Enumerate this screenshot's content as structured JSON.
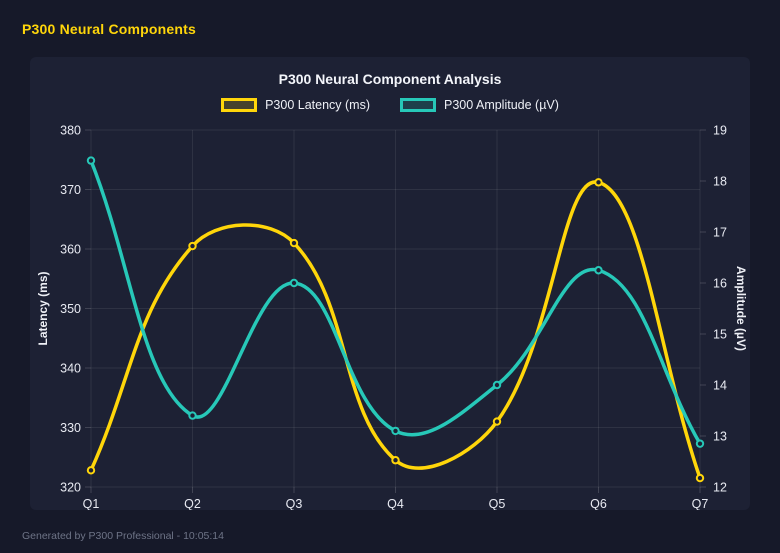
{
  "header": {
    "title": "P300 Neural Components"
  },
  "footer": {
    "text": "Generated by P300 Professional - 10:05:14"
  },
  "colors": {
    "background": "#161929",
    "panel": "#1d2134",
    "latency_yellow": "#ffd60a",
    "amplitude_teal": "#27c8b8",
    "grid": "rgba(255,255,255,0.08)",
    "tick": "rgba(255,255,255,0.16)"
  },
  "chart_data": {
    "type": "line",
    "title": "P300 Neural Component Analysis",
    "categories": [
      "Q1",
      "Q2",
      "Q3",
      "Q4",
      "Q5",
      "Q6",
      "Q7"
    ],
    "series": [
      {
        "name": "P300 Latency (ms)",
        "axis": "left",
        "color": "#ffd60a",
        "values": [
          322.8,
          360.5,
          361.0,
          324.5,
          331.0,
          371.2,
          321.5
        ]
      },
      {
        "name": "P300 Amplitude (µV)",
        "axis": "right",
        "color": "#27c8b8",
        "values": [
          18.4,
          13.4,
          16.0,
          13.1,
          14.0,
          16.25,
          12.85
        ]
      }
    ],
    "left_axis": {
      "label": "Latency (ms)",
      "min": 320,
      "max": 380,
      "ticks": [
        320,
        330,
        340,
        350,
        360,
        370,
        380
      ]
    },
    "right_axis": {
      "label": "Amplitude (µV)",
      "min": 12,
      "max": 19,
      "ticks": [
        12,
        13,
        14,
        15,
        16,
        17,
        18,
        19
      ]
    },
    "grid": true,
    "legend_position": "top",
    "line_tension": 0.4
  }
}
